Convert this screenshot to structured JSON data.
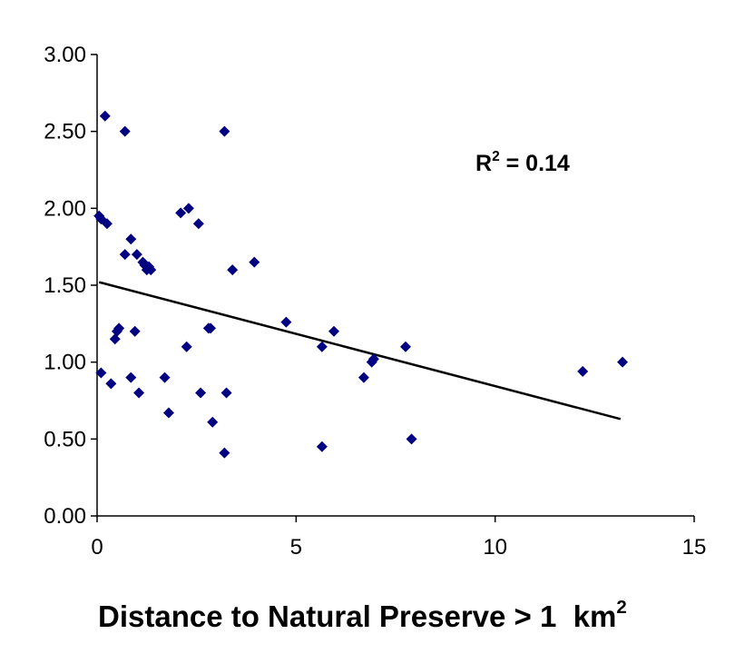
{
  "chart_data": {
    "type": "scatter",
    "xlabel": "Distance to Natural Preserve > 1  km",
    "xlabel_superscript": "2",
    "ylabel": "",
    "xlim": [
      0,
      15
    ],
    "ylim": [
      0,
      3
    ],
    "x_ticks": [
      0,
      5,
      10,
      15
    ],
    "x_tick_labels": [
      "0",
      "5",
      "10",
      "15"
    ],
    "y_ticks": [
      0,
      0.5,
      1.0,
      1.5,
      2.0,
      2.5,
      3.0
    ],
    "y_tick_labels": [
      "0.00",
      "0.50",
      "1.00",
      "1.50",
      "2.00",
      "2.50",
      "3.00"
    ],
    "grid": false,
    "legend": "none",
    "marker": "diamond",
    "marker_color": "#000080",
    "annotation": {
      "prefix": "R",
      "superscript": "2",
      "suffix": " = 0.14"
    },
    "trendline": {
      "x": [
        0.05,
        13.15
      ],
      "y": [
        1.52,
        0.63
      ],
      "color": "#000000"
    },
    "points": [
      {
        "x": 0.2,
        "y": 2.6
      },
      {
        "x": 0.7,
        "y": 2.5
      },
      {
        "x": 3.2,
        "y": 2.5
      },
      {
        "x": 0.05,
        "y": 1.95
      },
      {
        "x": 0.1,
        "y": 1.93
      },
      {
        "x": 0.25,
        "y": 1.9
      },
      {
        "x": 2.1,
        "y": 1.97
      },
      {
        "x": 2.3,
        "y": 2.0
      },
      {
        "x": 2.55,
        "y": 1.9
      },
      {
        "x": 0.85,
        "y": 1.8
      },
      {
        "x": 0.7,
        "y": 1.7
      },
      {
        "x": 1.0,
        "y": 1.7
      },
      {
        "x": 1.15,
        "y": 1.65
      },
      {
        "x": 1.2,
        "y": 1.63
      },
      {
        "x": 1.3,
        "y": 1.62
      },
      {
        "x": 1.25,
        "y": 1.6
      },
      {
        "x": 1.35,
        "y": 1.6
      },
      {
        "x": 3.4,
        "y": 1.6
      },
      {
        "x": 3.95,
        "y": 1.65
      },
      {
        "x": 0.5,
        "y": 1.2
      },
      {
        "x": 0.55,
        "y": 1.22
      },
      {
        "x": 0.45,
        "y": 1.15
      },
      {
        "x": 0.95,
        "y": 1.2
      },
      {
        "x": 2.8,
        "y": 1.22
      },
      {
        "x": 2.85,
        "y": 1.22
      },
      {
        "x": 2.25,
        "y": 1.1
      },
      {
        "x": 4.75,
        "y": 1.26
      },
      {
        "x": 5.95,
        "y": 1.2
      },
      {
        "x": 5.65,
        "y": 1.1
      },
      {
        "x": 7.75,
        "y": 1.1
      },
      {
        "x": 6.9,
        "y": 1.0
      },
      {
        "x": 6.95,
        "y": 1.02
      },
      {
        "x": 6.7,
        "y": 0.9
      },
      {
        "x": 12.2,
        "y": 0.94
      },
      {
        "x": 13.2,
        "y": 1.0
      },
      {
        "x": 0.1,
        "y": 0.93
      },
      {
        "x": 0.35,
        "y": 0.86
      },
      {
        "x": 0.85,
        "y": 0.9
      },
      {
        "x": 1.05,
        "y": 0.8
      },
      {
        "x": 1.7,
        "y": 0.9
      },
      {
        "x": 2.6,
        "y": 0.8
      },
      {
        "x": 3.25,
        "y": 0.8
      },
      {
        "x": 1.8,
        "y": 0.67
      },
      {
        "x": 2.9,
        "y": 0.61
      },
      {
        "x": 3.2,
        "y": 0.41
      },
      {
        "x": 5.65,
        "y": 0.45
      },
      {
        "x": 7.9,
        "y": 0.5
      }
    ]
  }
}
